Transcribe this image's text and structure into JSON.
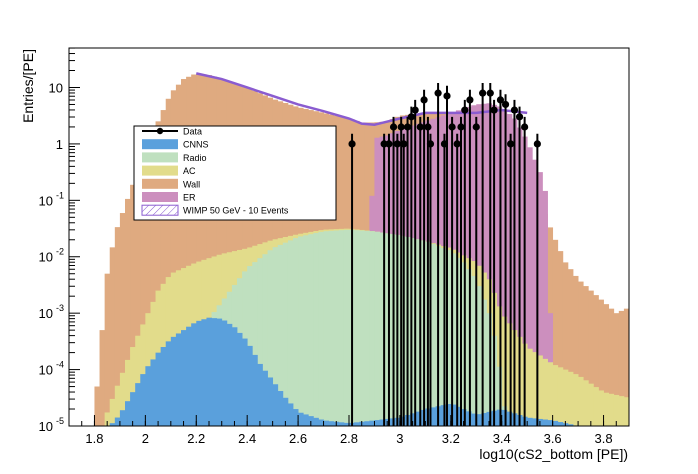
{
  "chart_data": {
    "type": "histogram",
    "xlabel": "log10(cS2_bottom [PE])",
    "ylabel": "Entries/[PE]",
    "x_ticks": [
      "1.8",
      "2",
      "2.2",
      "2.4",
      "2.6",
      "2.8",
      "3",
      "3.2",
      "3.4",
      "3.6",
      "3.8"
    ],
    "y_ticks": [
      {
        "base": "10",
        "exp": "-5",
        "v": -5
      },
      {
        "base": "10",
        "exp": "-4",
        "v": -4
      },
      {
        "base": "10",
        "exp": "-3",
        "v": -3
      },
      {
        "base": "10",
        "exp": "-2",
        "v": -2
      },
      {
        "base": "10",
        "exp": "-1",
        "v": -1
      },
      {
        "base": "1",
        "exp": "",
        "v": 0
      },
      {
        "base": "10",
        "exp": "",
        "v": 1
      }
    ],
    "xlim": [
      1.7,
      3.9
    ],
    "ylim_log10": [
      -5,
      1.7
    ],
    "y_scale": "log",
    "legend_position": "upper-left",
    "series": [
      {
        "key": "wall",
        "name": "Wall",
        "color": "#dfaa80",
        "points": [
          [
            1.8,
            -5
          ],
          [
            1.81,
            -4.3
          ],
          [
            1.83,
            -3.3
          ],
          [
            1.85,
            -2.3
          ],
          [
            1.88,
            -1.6
          ],
          [
            1.92,
            -1.1
          ],
          [
            1.96,
            -0.6
          ],
          [
            2.0,
            -0.2
          ],
          [
            2.05,
            0.4
          ],
          [
            2.1,
            0.9
          ],
          [
            2.15,
            1.15
          ],
          [
            2.2,
            1.25
          ],
          [
            2.25,
            1.22
          ],
          [
            2.3,
            1.15
          ],
          [
            2.4,
            1.0
          ],
          [
            2.5,
            0.8
          ],
          [
            2.6,
            0.65
          ],
          [
            2.7,
            0.55
          ],
          [
            2.8,
            0.45
          ],
          [
            2.85,
            0.38
          ],
          [
            2.9,
            0.38
          ],
          [
            2.95,
            0.4
          ],
          [
            3.0,
            0.5
          ],
          [
            3.1,
            0.55
          ],
          [
            3.2,
            0.55
          ],
          [
            3.3,
            0.45
          ],
          [
            3.4,
            0.1
          ],
          [
            3.5,
            -0.5
          ],
          [
            3.55,
            -1.0
          ],
          [
            3.6,
            -1.6
          ],
          [
            3.65,
            -2.1
          ],
          [
            3.7,
            -2.4
          ],
          [
            3.75,
            -2.6
          ],
          [
            3.8,
            -2.8
          ],
          [
            3.85,
            -3.0
          ],
          [
            3.9,
            -2.9
          ]
        ]
      },
      {
        "key": "er",
        "name": "ER",
        "color": "#cc8fbe",
        "points": [
          [
            2.85,
            -5
          ],
          [
            2.9,
            0.1
          ],
          [
            2.95,
            0.15
          ],
          [
            3.0,
            0.25
          ],
          [
            3.1,
            0.4
          ],
          [
            3.2,
            0.55
          ],
          [
            3.3,
            0.7
          ],
          [
            3.35,
            0.72
          ],
          [
            3.4,
            0.65
          ],
          [
            3.45,
            0.45
          ],
          [
            3.5,
            0.05
          ],
          [
            3.55,
            -0.5
          ],
          [
            3.58,
            -1.0
          ],
          [
            3.6,
            -5
          ]
        ]
      },
      {
        "key": "ac",
        "name": "AC",
        "color": "#e2dc8b",
        "points": [
          [
            1.83,
            -5
          ],
          [
            1.88,
            -4.4
          ],
          [
            1.95,
            -3.6
          ],
          [
            2.0,
            -3.1
          ],
          [
            2.05,
            -2.6
          ],
          [
            2.1,
            -2.3
          ],
          [
            2.2,
            -2.1
          ],
          [
            2.3,
            -1.95
          ],
          [
            2.4,
            -1.85
          ],
          [
            2.5,
            -1.7
          ],
          [
            2.6,
            -1.6
          ],
          [
            2.7,
            -1.52
          ],
          [
            2.8,
            -1.5
          ],
          [
            2.9,
            -1.55
          ],
          [
            3.0,
            -1.62
          ],
          [
            3.1,
            -1.72
          ],
          [
            3.2,
            -1.85
          ],
          [
            3.3,
            -2.1
          ],
          [
            3.35,
            -2.4
          ],
          [
            3.4,
            -3.0
          ],
          [
            3.5,
            -3.6
          ],
          [
            3.6,
            -3.9
          ],
          [
            3.7,
            -4.1
          ],
          [
            3.8,
            -4.4
          ],
          [
            3.9,
            -4.5
          ]
        ]
      },
      {
        "key": "radio",
        "name": "Radio",
        "color": "#bfe0bf",
        "points": [
          [
            1.97,
            -5
          ],
          [
            2.0,
            -4.7
          ],
          [
            2.1,
            -4.0
          ],
          [
            2.2,
            -3.4
          ],
          [
            2.3,
            -2.8
          ],
          [
            2.4,
            -2.2
          ],
          [
            2.5,
            -1.85
          ],
          [
            2.6,
            -1.65
          ],
          [
            2.7,
            -1.55
          ],
          [
            2.8,
            -1.52
          ],
          [
            2.9,
            -1.55
          ],
          [
            3.0,
            -1.62
          ],
          [
            3.1,
            -1.72
          ],
          [
            3.2,
            -1.9
          ],
          [
            3.25,
            -2.1
          ],
          [
            3.3,
            -2.4
          ],
          [
            3.35,
            -3.0
          ],
          [
            3.38,
            -3.6
          ],
          [
            3.4,
            -4.3
          ],
          [
            3.42,
            -5
          ]
        ]
      },
      {
        "key": "cnns",
        "name": "CNNS",
        "color": "#5aa0dc",
        "points": [
          [
            1.86,
            -5
          ],
          [
            1.9,
            -4.8
          ],
          [
            1.95,
            -4.4
          ],
          [
            2.0,
            -4.0
          ],
          [
            2.05,
            -3.7
          ],
          [
            2.1,
            -3.45
          ],
          [
            2.2,
            -3.15
          ],
          [
            2.25,
            -3.08
          ],
          [
            2.3,
            -3.1
          ],
          [
            2.35,
            -3.25
          ],
          [
            2.4,
            -3.5
          ],
          [
            2.45,
            -3.9
          ],
          [
            2.5,
            -4.2
          ],
          [
            2.55,
            -4.5
          ],
          [
            2.6,
            -4.75
          ],
          [
            2.7,
            -4.9
          ],
          [
            2.8,
            -4.95
          ],
          [
            3.0,
            -4.85
          ],
          [
            3.1,
            -4.7
          ],
          [
            3.2,
            -4.6
          ],
          [
            3.3,
            -4.8
          ],
          [
            3.4,
            -4.7
          ],
          [
            3.5,
            -4.85
          ],
          [
            3.6,
            -4.9
          ],
          [
            3.7,
            -5
          ]
        ]
      }
    ],
    "wimp": {
      "name": "WIMP 50 GeV - 10 Events",
      "color": "#8a5cd0",
      "points": [
        [
          2.2,
          1.25
        ],
        [
          2.3,
          1.15
        ],
        [
          2.4,
          1.0
        ],
        [
          2.5,
          0.85
        ],
        [
          2.6,
          0.7
        ],
        [
          2.7,
          0.58
        ],
        [
          2.8,
          0.45
        ],
        [
          2.85,
          0.36
        ],
        [
          2.9,
          0.34
        ],
        [
          3.0,
          0.45
        ],
        [
          3.1,
          0.55
        ],
        [
          3.2,
          0.55
        ],
        [
          3.3,
          0.55
        ],
        [
          3.4,
          0.6
        ],
        [
          3.5,
          0.55
        ]
      ]
    },
    "data": {
      "name": "Data",
      "color": "#000000",
      "points": [
        [
          2.812,
          0
        ],
        [
          2.938,
          0
        ],
        [
          2.957,
          0
        ],
        [
          2.975,
          0.3
        ],
        [
          2.99,
          0
        ],
        [
          3.005,
          0.3
        ],
        [
          3.015,
          0
        ],
        [
          3.03,
          0.3
        ],
        [
          3.045,
          0.48
        ],
        [
          3.06,
          0.6
        ],
        [
          3.08,
          0.3
        ],
        [
          3.095,
          0.78
        ],
        [
          3.11,
          0.3
        ],
        [
          3.12,
          0
        ],
        [
          3.15,
          0.9
        ],
        [
          3.175,
          0
        ],
        [
          3.185,
          0.85
        ],
        [
          3.205,
          0.3
        ],
        [
          3.225,
          0
        ],
        [
          3.24,
          0.3
        ],
        [
          3.255,
          0.6
        ],
        [
          3.275,
          0.78
        ],
        [
          3.3,
          0.3
        ],
        [
          3.325,
          0.9
        ],
        [
          3.355,
          0.9
        ],
        [
          3.37,
          0.6
        ],
        [
          3.395,
          0.78
        ],
        [
          3.415,
          0.7
        ],
        [
          3.435,
          0
        ],
        [
          3.45,
          0.6
        ],
        [
          3.47,
          0.48
        ],
        [
          3.49,
          0.3
        ],
        [
          3.54,
          0
        ]
      ]
    }
  }
}
